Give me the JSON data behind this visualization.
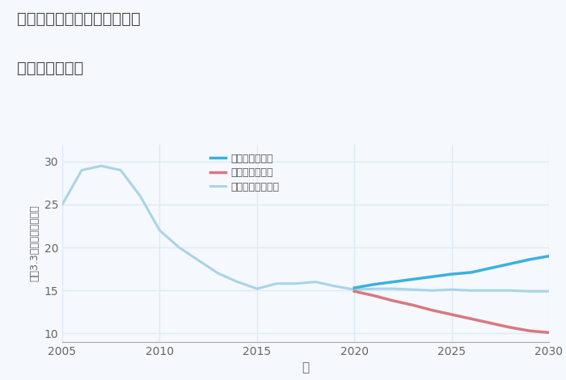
{
  "title_line1": "三重県員弁郡東員町笹尾西の",
  "title_line2": "土地の価格推移",
  "xlabel": "年",
  "ylabel": "平（3.3㎡）単価（万円）",
  "xlim": [
    2005,
    2030
  ],
  "ylim": [
    9,
    32
  ],
  "yticks": [
    10,
    15,
    20,
    25,
    30
  ],
  "xticks": [
    2005,
    2010,
    2015,
    2020,
    2025,
    2030
  ],
  "background_color": "#f5f8fc",
  "plot_bg_color": "#f5f8fc",
  "grid_color": "#ddeaf5",
  "normal_scenario": {
    "label": "ノーマルシナリオ",
    "color": "#a8d4e8",
    "years": [
      2005,
      2006,
      2007,
      2008,
      2009,
      2010,
      2011,
      2012,
      2013,
      2014,
      2015,
      2016,
      2017,
      2018,
      2019,
      2020,
      2021,
      2022,
      2023,
      2024,
      2025,
      2026,
      2027,
      2028,
      2029,
      2030
    ],
    "values": [
      25.0,
      29.0,
      29.5,
      29.0,
      26.0,
      22.0,
      20.0,
      18.5,
      17.0,
      16.0,
      15.2,
      15.8,
      15.8,
      16.0,
      15.5,
      15.1,
      15.2,
      15.2,
      15.1,
      15.0,
      15.1,
      15.0,
      15.0,
      15.0,
      14.9,
      14.9
    ]
  },
  "good_scenario": {
    "label": "グッドシナリオ",
    "color": "#3ab0e0",
    "years": [
      2020,
      2021,
      2022,
      2023,
      2024,
      2025,
      2026,
      2027,
      2028,
      2029,
      2030
    ],
    "values": [
      15.3,
      15.7,
      16.0,
      16.3,
      16.6,
      16.9,
      17.1,
      17.6,
      18.1,
      18.6,
      19.0
    ]
  },
  "bad_scenario": {
    "label": "バッドシナリオ",
    "color": "#d87880",
    "years": [
      2020,
      2021,
      2022,
      2023,
      2024,
      2025,
      2026,
      2027,
      2028,
      2029,
      2030
    ],
    "values": [
      14.9,
      14.4,
      13.8,
      13.3,
      12.7,
      12.2,
      11.7,
      11.2,
      10.7,
      10.3,
      10.1
    ]
  }
}
